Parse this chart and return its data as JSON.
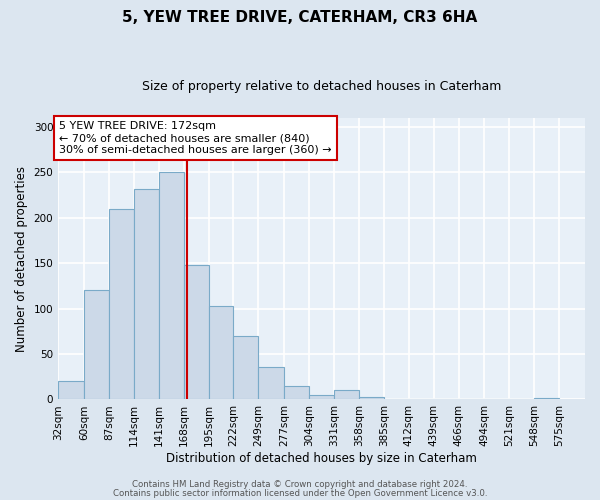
{
  "title": "5, YEW TREE DRIVE, CATERHAM, CR3 6HA",
  "subtitle": "Size of property relative to detached houses in Caterham",
  "xlabel": "Distribution of detached houses by size in Caterham",
  "ylabel": "Number of detached properties",
  "bin_labels": [
    "32sqm",
    "60sqm",
    "87sqm",
    "114sqm",
    "141sqm",
    "168sqm",
    "195sqm",
    "222sqm",
    "249sqm",
    "277sqm",
    "304sqm",
    "331sqm",
    "358sqm",
    "385sqm",
    "412sqm",
    "439sqm",
    "466sqm",
    "494sqm",
    "521sqm",
    "548sqm",
    "575sqm"
  ],
  "bin_edges": [
    32,
    60,
    87,
    114,
    141,
    168,
    195,
    222,
    249,
    277,
    304,
    331,
    358,
    385,
    412,
    439,
    466,
    494,
    521,
    548,
    575
  ],
  "bar_heights": [
    20,
    120,
    210,
    232,
    250,
    148,
    103,
    70,
    36,
    15,
    5,
    10,
    3,
    0,
    0,
    0,
    0,
    0,
    0,
    2
  ],
  "bar_color": "#ccd9e8",
  "bar_edge_color": "#7aaac8",
  "property_line_x": 172,
  "property_line_color": "#cc0000",
  "annotation_text": "5 YEW TREE DRIVE: 172sqm\n← 70% of detached houses are smaller (840)\n30% of semi-detached houses are larger (360) →",
  "annotation_box_color": "#ffffff",
  "annotation_box_edge_color": "#cc0000",
  "ylim": [
    0,
    310
  ],
  "yticks": [
    0,
    50,
    100,
    150,
    200,
    250,
    300
  ],
  "footer_line1": "Contains HM Land Registry data © Crown copyright and database right 2024.",
  "footer_line2": "Contains public sector information licensed under the Open Government Licence v3.0.",
  "background_color": "#dce6f0",
  "plot_bg_color": "#e8f0f8",
  "grid_color": "#ffffff",
  "title_fontsize": 11,
  "subtitle_fontsize": 9,
  "axis_label_fontsize": 8.5,
  "tick_fontsize": 7.5,
  "annotation_fontsize": 8,
  "footer_fontsize": 6.2
}
